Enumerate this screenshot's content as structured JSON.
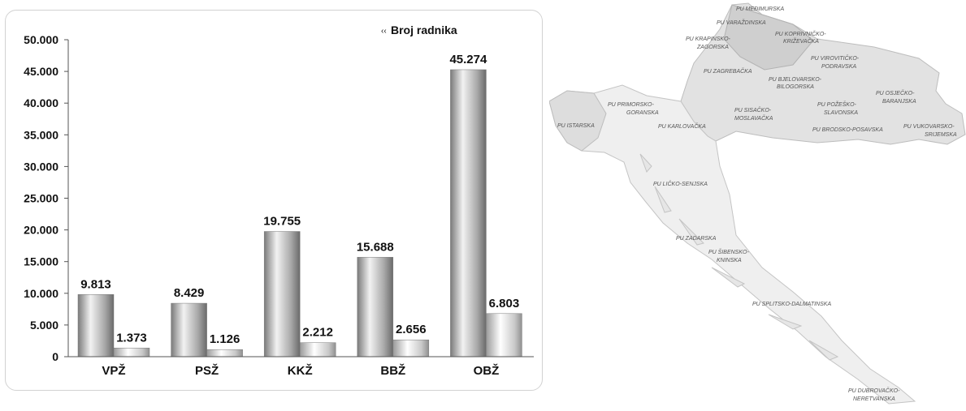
{
  "chart_data": {
    "type": "bar",
    "categories": [
      "VPŽ",
      "PSŽ",
      "KKŽ",
      "BBŽ",
      "OBŽ"
    ],
    "series": [
      {
        "name": "Broj radnika",
        "values": [
          9813,
          8429,
          19755,
          15688,
          45274
        ],
        "color": "#b8b8b8"
      },
      {
        "values": [
          1373,
          1126,
          2212,
          2656,
          6803
        ],
        "color": "#dcdcdc"
      }
    ],
    "data_labels": [
      [
        "9.813",
        "8.429",
        "19.755",
        "15.688",
        "45.274"
      ],
      [
        "1.373",
        "1.126",
        "2.212",
        "2.656",
        "6.803"
      ]
    ],
    "y_ticks": [
      "0",
      "5.000",
      "10.000",
      "15.000",
      "20.000",
      "25.000",
      "30.000",
      "35.000",
      "40.000",
      "45.000",
      "50.000"
    ],
    "ylim": [
      0,
      50000
    ],
    "legend_marker": "‹‹",
    "legend_position": "top-right",
    "grid": false
  },
  "map": {
    "regions": [
      "PU MEĐIMURSKA",
      "PU VARAŽDINSKA",
      "PU KRAPINSKO-",
      "ZAGORSKA",
      "PU KOPRIVNIČKO-",
      "KRIŽEVAČKA",
      "PU VIROVITIČKO-",
      "PODRAVSKA",
      "PU ZAGREBAČKA",
      "PU BJELOVARSKO-",
      "BILOGORSKA",
      "PU OSJEČKO-",
      "BARANJSKA",
      "PU PRIMORSKO-",
      "GORANSKA",
      "PU SISAČKO-",
      "MOSLAVAČKA",
      "PU POŽEŠKO-",
      "SLAVONSKA",
      "PU ISTARSKA",
      "PU KARLOVAČKA",
      "PU BRODSKO-POSAVSKA",
      "PU VUKOVARSKO-",
      "SRIJEMSKA",
      "PU LIČKO-SENJSKA",
      "PU ZADARSKA",
      "PU ŠIBENSKO-",
      "KNINSKA",
      "PU SPLITSKO-DALMATINSKA",
      "PU DUBROVAČKO-",
      "NERETVANSKA"
    ]
  }
}
